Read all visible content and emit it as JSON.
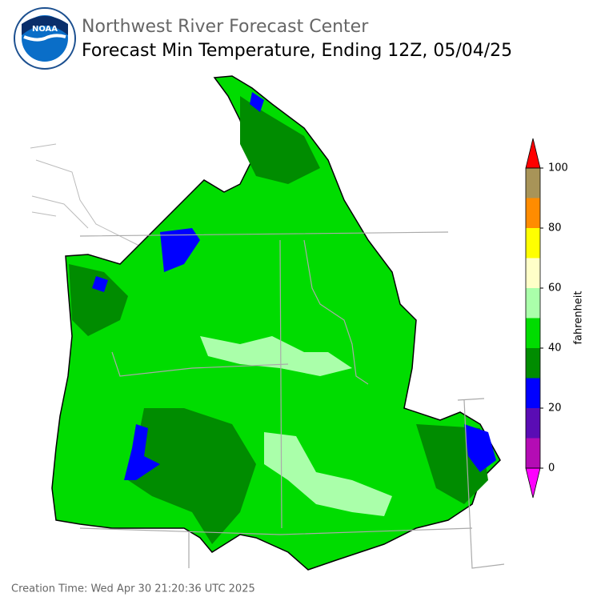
{
  "header": {
    "agency": "Northwest River Forecast Center",
    "title": "Forecast Min Temperature, Ending 12Z, 05/04/25",
    "logo_text": "NOAA"
  },
  "colorbar": {
    "label": "fahrenheit",
    "bounds": [
      0,
      10,
      20,
      30,
      40,
      50,
      60,
      70,
      80,
      90,
      100
    ],
    "colors": [
      "#b40cb4",
      "#5a0cb4",
      "#0000ff",
      "#008c00",
      "#00dc00",
      "#aaffaa",
      "#ffffc8",
      "#ffff00",
      "#ff8c00",
      "#a89458"
    ],
    "under_color": "#ff00ff",
    "over_color": "#ff0000",
    "lim": [
      0,
      100
    ],
    "ticks": [
      0,
      20,
      40,
      60,
      80,
      100
    ]
  },
  "footer": {
    "creation_time": "Creation Time: Wed Apr 30 21:20:36 UTC 2025"
  }
}
